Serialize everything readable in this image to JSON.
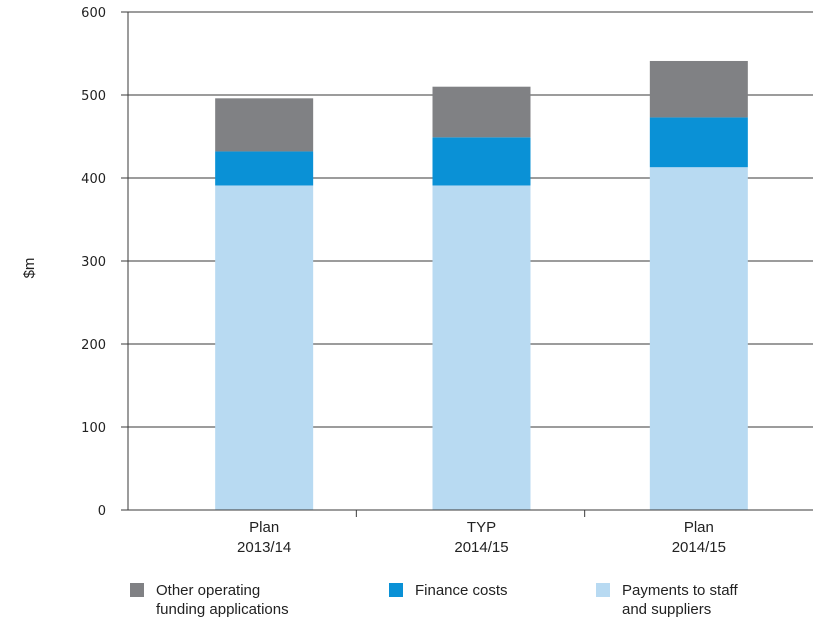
{
  "chart_data": {
    "type": "bar",
    "stacked": true,
    "categories": [
      [
        "Plan",
        "2013/14"
      ],
      [
        "TYP",
        "2014/15"
      ],
      [
        "Plan",
        "2014/15"
      ]
    ],
    "series": [
      {
        "name": "Payments to staff and suppliers",
        "values": [
          391,
          391,
          413
        ],
        "color": "#b8daf2"
      },
      {
        "name": "Finance costs",
        "values": [
          41,
          58,
          60
        ],
        "color": "#0a91d6"
      },
      {
        "name": "Other operating funding applications",
        "values": [
          64,
          61,
          68
        ],
        "color": "#808184"
      }
    ],
    "ylabel": "$m",
    "ylim": [
      0,
      600
    ],
    "yticks": [
      0,
      100,
      200,
      300,
      400,
      500,
      600
    ],
    "grid": true,
    "legend_position": "bottom"
  },
  "legend": [
    {
      "label_line1": "Other operating",
      "label_line2": "funding applications",
      "color": "#808184"
    },
    {
      "label_line1": "Finance costs",
      "label_line2": "",
      "color": "#0a91d6"
    },
    {
      "label_line1": "Payments to staff",
      "label_line2": "and suppliers",
      "color": "#b8daf2"
    }
  ]
}
